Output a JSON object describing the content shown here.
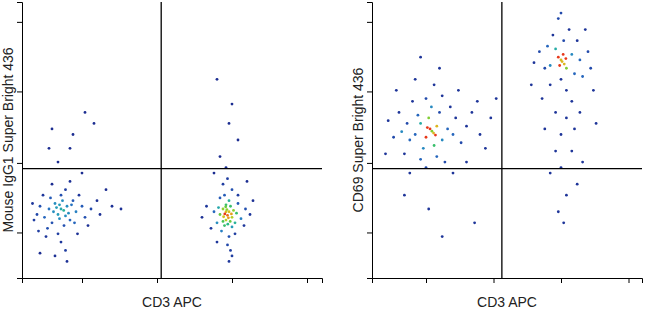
{
  "chart_data": [
    {
      "type": "scatter",
      "x_label": "CD3 APC",
      "y_label": "Mouse IgG1 Super Bright 436",
      "xlim": [
        0,
        1000
      ],
      "ylim": [
        0,
        1000
      ],
      "xticks": [
        200,
        450,
        700,
        950
      ],
      "yticks": [
        165,
        417,
        676,
        928
      ],
      "tick_labels": false,
      "color": "#1c2b8f",
      "quadrant": {
        "x": 464,
        "y": 396
      },
      "x": [
        139,
        120,
        150,
        100,
        170,
        90,
        130,
        160,
        110,
        180,
        75,
        200,
        140,
        95,
        125,
        155,
        115,
        165,
        135,
        105,
        60,
        210,
        230,
        85,
        145,
        175,
        50,
        190,
        120,
        70,
        250,
        40,
        160,
        100,
        220,
        130,
        80,
        260,
        55,
        185,
        145,
        110,
        300,
        35,
        200,
        120,
        90,
        170,
        240,
        60,
        150,
        280,
        330,
        130,
        145,
        125,
        100,
        210,
        160,
        685,
        680,
        690,
        670,
        700,
        675,
        695,
        660,
        710,
        690,
        665,
        705,
        680,
        670,
        700,
        715,
        655,
        690,
        675,
        720,
        650,
        685,
        700,
        660,
        730,
        640,
        695,
        710,
        670,
        745,
        630,
        685,
        720,
        650,
        760,
        615,
        700,
        680,
        740,
        600,
        770,
        690,
        660,
        720,
        690,
        640,
        750,
        680,
        688,
        676,
        694,
        683,
        672,
        698,
        686,
        679,
        700,
        650
      ],
      "y": [
        245,
        230,
        260,
        200,
        280,
        250,
        300,
        210,
        270,
        240,
        220,
        260,
        190,
        290,
        215,
        235,
        255,
        265,
        280,
        240,
        260,
        220,
        250,
        180,
        320,
        200,
        230,
        300,
        160,
        300,
        280,
        210,
        350,
        340,
        190,
        130,
        150,
        230,
        170,
        160,
        100,
        80,
        260,
        270,
        380,
        420,
        470,
        520,
        560,
        90,
        60,
        320,
        250,
        250,
        225,
        265,
        540,
        600,
        470,
        227,
        210,
        240,
        250,
        220,
        190,
        260,
        230,
        200,
        280,
        170,
        245,
        265,
        205,
        185,
        235,
        255,
        150,
        300,
        270,
        200,
        120,
        320,
        290,
        215,
        240,
        100,
        160,
        340,
        250,
        180,
        360,
        300,
        130,
        230,
        260,
        80,
        400,
        190,
        220,
        280,
        60,
        440,
        500,
        560,
        380,
        350,
        240,
        218,
        232,
        205,
        248,
        222,
        232,
        195,
        258,
        630,
        720
      ]
    },
    {
      "type": "scatter",
      "x_label": "CD3 APC",
      "y_label": "CD69 Super Bright 436",
      "xlim": [
        0,
        1000
      ],
      "ylim": [
        0,
        1000
      ],
      "xticks": [
        200,
        450,
        700,
        950
      ],
      "yticks": [
        165,
        417,
        676,
        928
      ],
      "tick_labels": false,
      "color": "#1c2b8f",
      "quadrant": {
        "x": 481,
        "y": 396
      },
      "x": [
        222,
        200,
        240,
        180,
        260,
        210,
        230,
        160,
        250,
        190,
        280,
        220,
        170,
        300,
        140,
        240,
        200,
        310,
        130,
        260,
        180,
        330,
        110,
        290,
        150,
        350,
        230,
        120,
        370,
        100,
        270,
        320,
        80,
        200,
        400,
        160,
        390,
        60,
        250,
        420,
        140,
        440,
        90,
        300,
        460,
        180,
        50,
        350,
        210,
        380,
        120,
        260,
        215,
        228,
        205,
        235,
        704,
        690,
        720,
        680,
        740,
        660,
        710,
        750,
        670,
        730,
        700,
        770,
        650,
        690,
        760,
        720,
        640,
        780,
        700,
        660,
        800,
        620,
        740,
        680,
        810,
        720,
        600,
        790,
        700,
        750,
        680,
        770,
        630,
        740,
        700,
        820,
        660,
        760,
        720,
        690,
        780,
        640,
        830,
        710,
        590,
        700,
        712,
        695,
        718,
        708
      ],
      "y": [
        532,
        510,
        550,
        560,
        500,
        580,
        480,
        520,
        600,
        470,
        540,
        620,
        590,
        520,
        500,
        440,
        650,
        580,
        560,
        660,
        430,
        490,
        530,
        620,
        640,
        550,
        700,
        450,
        600,
        600,
        420,
        680,
        510,
        400,
        520,
        720,
        640,
        570,
        760,
        470,
        380,
        580,
        680,
        380,
        650,
        800,
        450,
        420,
        250,
        200,
        300,
        150,
        540,
        525,
        545,
        518,
        784,
        800,
        760,
        830,
        810,
        770,
        860,
        740,
        880,
        900,
        720,
        790,
        840,
        940,
        860,
        680,
        760,
        730,
        960,
        700,
        820,
        820,
        640,
        600,
        760,
        580,
        780,
        900,
        520,
        540,
        460,
        600,
        650,
        460,
        400,
        680,
        380,
        340,
        300,
        240,
        420,
        540,
        560,
        200,
        700,
        790,
        775,
        770,
        795,
        810
      ]
    }
  ]
}
